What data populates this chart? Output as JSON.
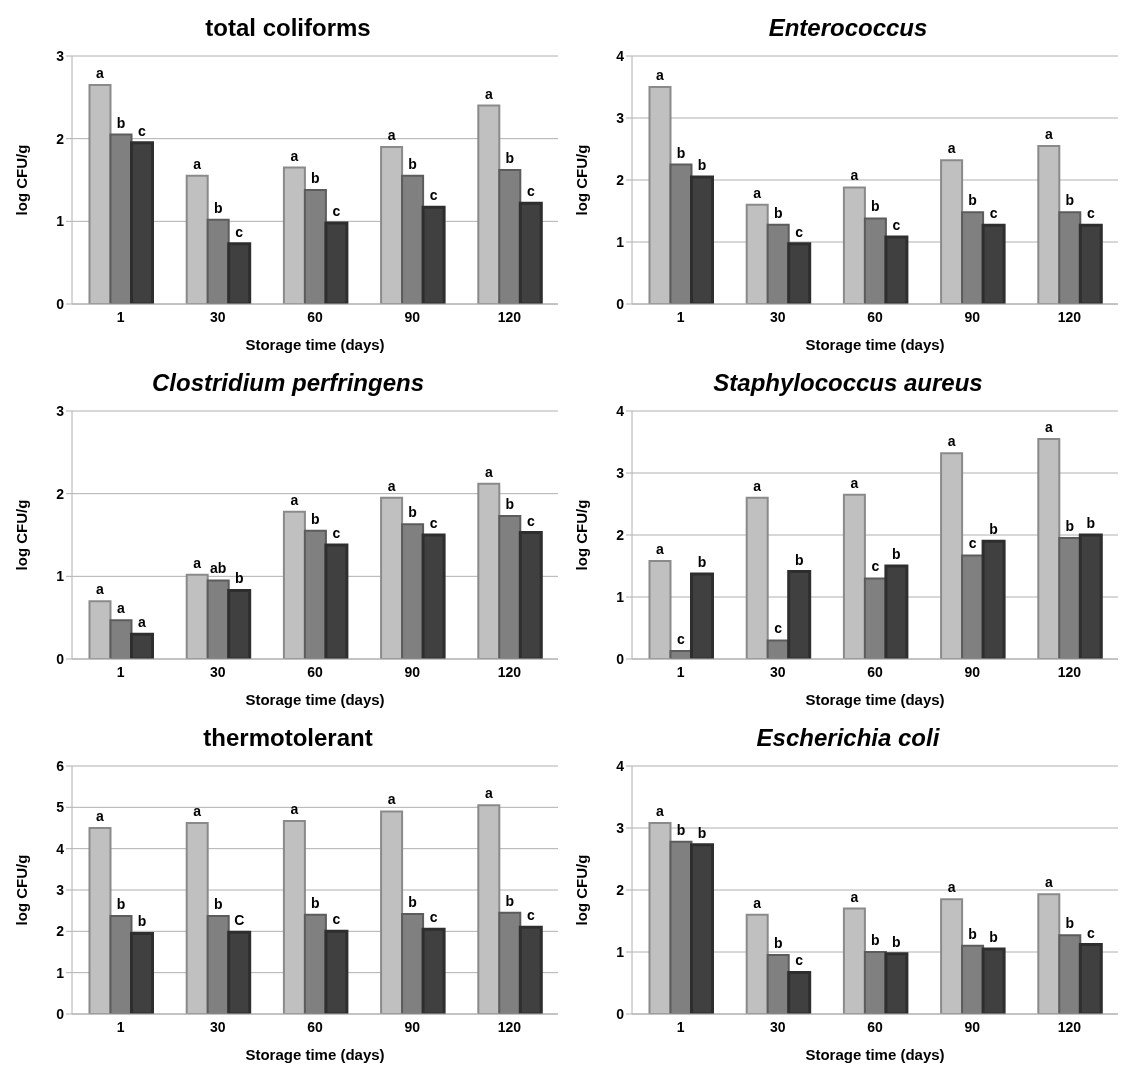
{
  "chart_data": [
    {
      "type": "bar",
      "title": "total coliforms",
      "xlabel": "Storage time (days)",
      "ylabel": "log CFU/g",
      "categories": [
        "1",
        "30",
        "60",
        "90",
        "120"
      ],
      "ylim": [
        0,
        3
      ],
      "yticks": [
        0,
        1,
        2,
        3
      ],
      "grid": "y",
      "series": [
        {
          "color": "#c0c0c0",
          "values": [
            2.65,
            1.55,
            1.65,
            1.9,
            2.4
          ],
          "value_labels": [
            "a",
            "a",
            "a",
            "a",
            "a"
          ]
        },
        {
          "color": "#808080",
          "values": [
            2.05,
            1.02,
            1.38,
            1.55,
            1.62
          ],
          "value_labels": [
            "b",
            "b",
            "b",
            "b",
            "b"
          ]
        },
        {
          "color": "#404040",
          "values": [
            1.95,
            0.73,
            0.98,
            1.17,
            1.22
          ],
          "value_labels": [
            "c",
            "c",
            "c",
            "c",
            "c"
          ]
        }
      ]
    },
    {
      "type": "bar",
      "title": "Enterococcus",
      "xlabel": "Storage time (days)",
      "ylabel": "log CFU/g",
      "categories": [
        "1",
        "30",
        "60",
        "90",
        "120"
      ],
      "ylim": [
        0,
        4
      ],
      "yticks": [
        0,
        1,
        2,
        3,
        4
      ],
      "grid": "y",
      "series": [
        {
          "color": "#c0c0c0",
          "values": [
            3.5,
            1.6,
            1.88,
            2.32,
            2.55
          ],
          "value_labels": [
            "a",
            "a",
            "a",
            "a",
            "a"
          ]
        },
        {
          "color": "#808080",
          "values": [
            2.25,
            1.28,
            1.38,
            1.48,
            1.48
          ],
          "value_labels": [
            "b",
            "b",
            "b",
            "b",
            "b"
          ]
        },
        {
          "color": "#404040",
          "values": [
            2.05,
            0.97,
            1.08,
            1.27,
            1.27
          ],
          "value_labels": [
            "b",
            "c",
            "c",
            "c",
            "c"
          ]
        }
      ]
    },
    {
      "type": "bar",
      "title": "Clostridium perfringens",
      "xlabel": "Storage time (days)",
      "ylabel": "log CFU/g",
      "categories": [
        "1",
        "30",
        "60",
        "90",
        "120"
      ],
      "ylim": [
        0,
        3
      ],
      "yticks": [
        0,
        1,
        2,
        3
      ],
      "grid": "y",
      "series": [
        {
          "color": "#c0c0c0",
          "values": [
            0.7,
            1.02,
            1.78,
            1.95,
            2.12
          ],
          "value_labels": [
            "a",
            "a",
            "a",
            "a",
            "a"
          ]
        },
        {
          "color": "#808080",
          "values": [
            0.47,
            0.95,
            1.55,
            1.63,
            1.73
          ],
          "value_labels": [
            "a",
            "ab",
            "b",
            "b",
            "b"
          ]
        },
        {
          "color": "#404040",
          "values": [
            0.3,
            0.83,
            1.38,
            1.5,
            1.53
          ],
          "value_labels": [
            "a",
            "b",
            "c",
            "c",
            "c"
          ]
        }
      ]
    },
    {
      "type": "bar",
      "title": "Staphylococcus aureus",
      "xlabel": "Storage time (days)",
      "ylabel": "log CFU/g",
      "categories": [
        "1",
        "30",
        "60",
        "90",
        "120"
      ],
      "ylim": [
        0,
        4
      ],
      "yticks": [
        0,
        1,
        2,
        3,
        4
      ],
      "grid": "y",
      "series": [
        {
          "color": "#c0c0c0",
          "values": [
            1.58,
            2.6,
            2.65,
            3.32,
            3.55
          ],
          "value_labels": [
            "a",
            "a",
            "a",
            "a",
            "a"
          ]
        },
        {
          "color": "#808080",
          "values": [
            0.13,
            0.3,
            1.3,
            1.67,
            1.95
          ],
          "value_labels": [
            "c",
            "c",
            "c",
            "c",
            "b"
          ]
        },
        {
          "color": "#404040",
          "values": [
            1.37,
            1.41,
            1.5,
            1.9,
            2.0
          ],
          "value_labels": [
            "b",
            "b",
            "b",
            "b",
            "b"
          ]
        }
      ]
    },
    {
      "type": "bar",
      "title": "thermotolerant",
      "xlabel": "Storage time (days)",
      "ylabel": "log CFU/g",
      "categories": [
        "1",
        "30",
        "60",
        "90",
        "120"
      ],
      "ylim": [
        0,
        6
      ],
      "yticks": [
        0,
        1,
        2,
        3,
        4,
        5,
        6
      ],
      "grid": "y",
      "series": [
        {
          "color": "#c0c0c0",
          "values": [
            4.5,
            4.62,
            4.67,
            4.9,
            5.05
          ],
          "value_labels": [
            "a",
            "a",
            "a",
            "a",
            "a"
          ]
        },
        {
          "color": "#808080",
          "values": [
            2.37,
            2.37,
            2.4,
            2.42,
            2.45
          ],
          "value_labels": [
            "b",
            "b",
            "b",
            "b",
            "b"
          ]
        },
        {
          "color": "#404040",
          "values": [
            1.95,
            1.98,
            2.0,
            2.05,
            2.1
          ],
          "value_labels": [
            "b",
            "C",
            "c",
            "c",
            "c"
          ]
        }
      ]
    },
    {
      "type": "bar",
      "title": "Escherichia coli",
      "xlabel": "Storage time (days)",
      "ylabel": "log CFU/g",
      "categories": [
        "1",
        "30",
        "60",
        "90",
        "120"
      ],
      "ylim": [
        0,
        4
      ],
      "yticks": [
        0,
        1,
        2,
        3,
        4
      ],
      "grid": "y",
      "series": [
        {
          "color": "#c0c0c0",
          "values": [
            3.08,
            1.6,
            1.7,
            1.85,
            1.93
          ],
          "value_labels": [
            "a",
            "a",
            "a",
            "a",
            "a"
          ]
        },
        {
          "color": "#808080",
          "values": [
            2.78,
            0.95,
            1.0,
            1.1,
            1.27
          ],
          "value_labels": [
            "b",
            "b",
            "b",
            "b",
            "b"
          ]
        },
        {
          "color": "#404040",
          "values": [
            2.73,
            0.67,
            0.97,
            1.05,
            1.12
          ],
          "value_labels": [
            "b",
            "c",
            "b",
            "b",
            "c"
          ]
        }
      ]
    }
  ]
}
